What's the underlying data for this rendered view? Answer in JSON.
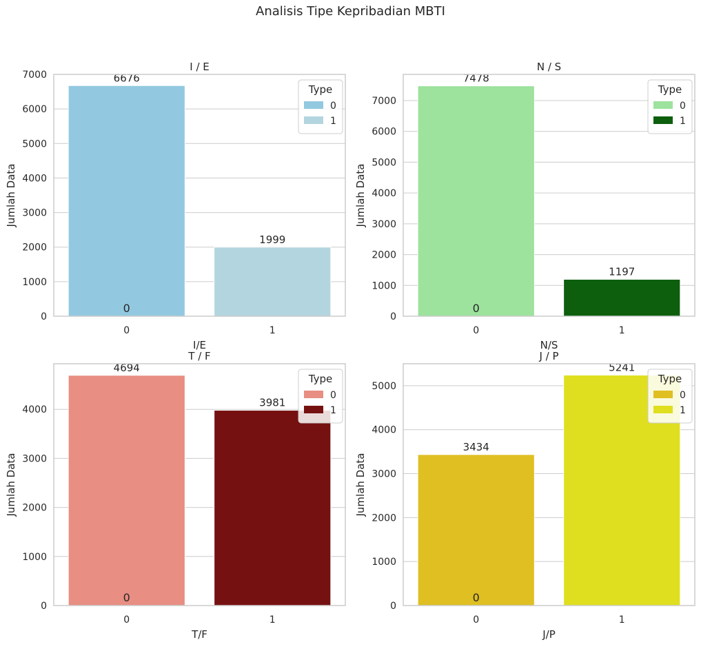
{
  "figure": {
    "title": "Analisis Tipe Kepribadian MBTI"
  },
  "chart_data": [
    {
      "type": "bar",
      "title": "I / E",
      "xlabel": "I/E",
      "ylabel": "Jumlah Data",
      "categories": [
        "0",
        "1"
      ],
      "values": [
        6676,
        1999
      ],
      "bar_labels": [
        "6676",
        "1999"
      ],
      "extra_label": "0",
      "colors": [
        "#92C9E0",
        "#B3D5E0"
      ],
      "ylim": [
        0,
        7000
      ],
      "yticks": [
        0,
        1000,
        2000,
        3000,
        4000,
        5000,
        6000,
        7000
      ],
      "grid": true,
      "legend": {
        "title": "Type",
        "placement": "top-right",
        "entries": [
          "0",
          "1"
        ]
      }
    },
    {
      "type": "bar",
      "title": "N / S",
      "xlabel": "N/S",
      "ylabel": "Jumlah Data",
      "categories": [
        "0",
        "1"
      ],
      "values": [
        7478,
        1197
      ],
      "bar_labels": [
        "7478",
        "1197"
      ],
      "extra_label": "0",
      "colors": [
        "#9DE29D",
        "#0D5E0D"
      ],
      "ylim": [
        0,
        7850
      ],
      "yticks": [
        0,
        1000,
        2000,
        3000,
        4000,
        5000,
        6000,
        7000
      ],
      "grid": true,
      "legend": {
        "title": "Type",
        "placement": "top-right",
        "entries": [
          "0",
          "1"
        ]
      }
    },
    {
      "type": "bar",
      "title": "T / F",
      "xlabel": "T/F",
      "ylabel": "Jumlah Data",
      "categories": [
        "0",
        "1"
      ],
      "values": [
        4694,
        3981
      ],
      "bar_labels": [
        "4694",
        "3981"
      ],
      "extra_label": "0",
      "colors": [
        "#E88E82",
        "#761111"
      ],
      "ylim": [
        0,
        4930
      ],
      "yticks": [
        0,
        1000,
        2000,
        3000,
        4000
      ],
      "grid": true,
      "legend": {
        "title": "Type",
        "placement": "top-right",
        "entries": [
          "0",
          "1"
        ]
      }
    },
    {
      "type": "bar",
      "title": "J / P",
      "xlabel": "J/P",
      "ylabel": "Jumlah Data",
      "categories": [
        "0",
        "1"
      ],
      "values": [
        3434,
        5241
      ],
      "bar_labels": [
        "3434",
        "5241"
      ],
      "extra_label": "0",
      "colors": [
        "#DFBF22",
        "#DFDF1F"
      ],
      "ylim": [
        0,
        5500
      ],
      "yticks": [
        0,
        1000,
        2000,
        3000,
        4000,
        5000
      ],
      "grid": true,
      "legend": {
        "title": "Type",
        "placement": "top-right",
        "entries": [
          "0",
          "1"
        ]
      }
    }
  ]
}
